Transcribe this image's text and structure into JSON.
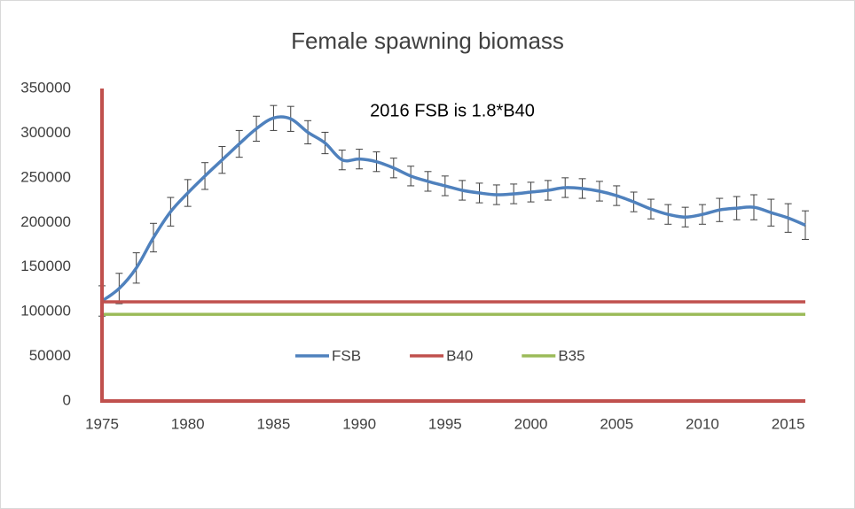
{
  "chart_data": {
    "type": "line",
    "title": "Female spawning biomass",
    "annotation": "2016 FSB is 1.8*B40",
    "x": [
      1975,
      1976,
      1977,
      1978,
      1979,
      1980,
      1981,
      1982,
      1983,
      1984,
      1985,
      1986,
      1987,
      1988,
      1989,
      1990,
      1991,
      1992,
      1993,
      1994,
      1995,
      1996,
      1997,
      1998,
      1999,
      2000,
      2001,
      2002,
      2003,
      2004,
      2005,
      2006,
      2007,
      2008,
      2009,
      2010,
      2011,
      2012,
      2013,
      2014,
      2015,
      2016
    ],
    "series": [
      {
        "name": "FSB",
        "color": "#4f81bd",
        "values": [
          112000,
          126000,
          149000,
          183000,
          212000,
          233000,
          252000,
          270000,
          288000,
          305000,
          317000,
          316000,
          301000,
          289000,
          270000,
          271000,
          268000,
          261000,
          252000,
          246000,
          241000,
          236000,
          233000,
          231000,
          232000,
          234000,
          236000,
          239000,
          238000,
          235000,
          230000,
          223000,
          215000,
          209000,
          206000,
          209000,
          214000,
          216000,
          217000,
          211000,
          205000,
          197000
        ],
        "errors": [
          17000,
          17000,
          17000,
          16000,
          16000,
          15000,
          15000,
          15000,
          15000,
          14000,
          14000,
          14000,
          13000,
          12000,
          11000,
          11000,
          11000,
          11000,
          11000,
          11000,
          11000,
          11000,
          11000,
          11000,
          11000,
          11000,
          11000,
          11000,
          11000,
          11000,
          11000,
          11000,
          11000,
          11000,
          11000,
          11000,
          13000,
          13000,
          14000,
          15000,
          16000,
          16000
        ]
      },
      {
        "name": "B40",
        "color": "#c0504d",
        "values": [
          111000,
          111000,
          111000,
          111000,
          111000,
          111000,
          111000,
          111000,
          111000,
          111000,
          111000,
          111000,
          111000,
          111000,
          111000,
          111000,
          111000,
          111000,
          111000,
          111000,
          111000,
          111000,
          111000,
          111000,
          111000,
          111000,
          111000,
          111000,
          111000,
          111000,
          111000,
          111000,
          111000,
          111000,
          111000,
          111000,
          111000,
          111000,
          111000,
          111000,
          111000,
          111000
        ]
      },
      {
        "name": "B35",
        "color": "#9bbb59",
        "values": [
          97100,
          97100,
          97100,
          97100,
          97100,
          97100,
          97100,
          97100,
          97100,
          97100,
          97100,
          97100,
          97100,
          97100,
          97100,
          97100,
          97100,
          97100,
          97100,
          97100,
          97100,
          97100,
          97100,
          97100,
          97100,
          97100,
          97100,
          97100,
          97100,
          97100,
          97100,
          97100,
          97100,
          97100,
          97100,
          97100,
          97100,
          97100,
          97100,
          97100,
          97100,
          97100
        ]
      }
    ],
    "xlim": [
      1975,
      2016
    ],
    "xticks": [
      1975,
      1980,
      1985,
      1990,
      1995,
      2000,
      2005,
      2010,
      2015
    ],
    "ylim": [
      0,
      350000
    ],
    "yticks": [
      0,
      50000,
      100000,
      150000,
      200000,
      250000,
      300000,
      350000
    ],
    "grid": false,
    "legend": "center"
  }
}
